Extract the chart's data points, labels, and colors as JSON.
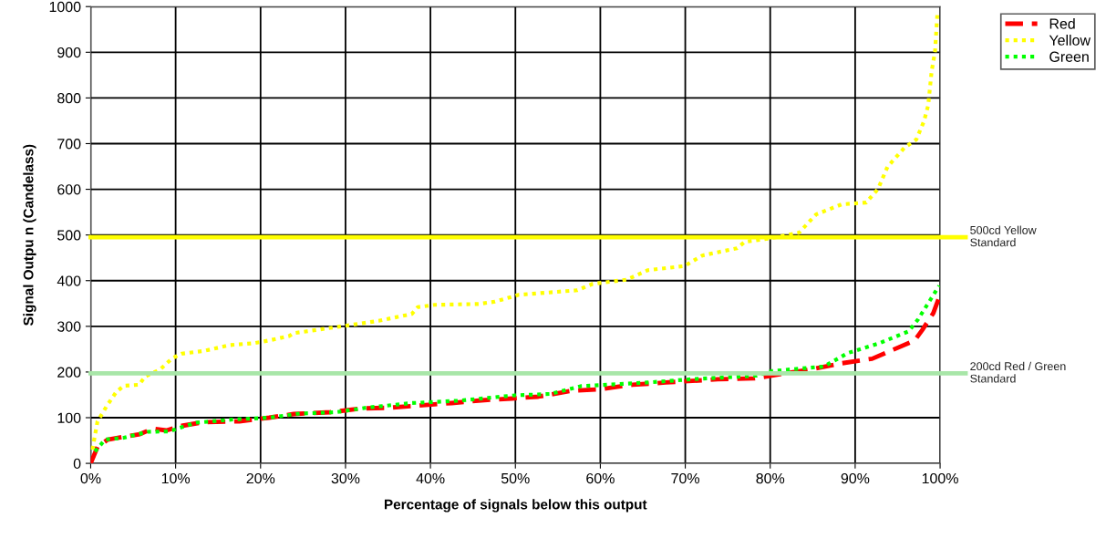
{
  "chart_data": {
    "type": "line",
    "xlabel": "Percentage of signals below this output",
    "ylabel": "Signal Outpu n (Candelass)",
    "xlim": [
      0,
      100
    ],
    "ylim": [
      0,
      1000
    ],
    "xticks": [
      {
        "value": 0,
        "label": "0%"
      },
      {
        "value": 10,
        "label": "10%"
      },
      {
        "value": 20,
        "label": "20%"
      },
      {
        "value": 30,
        "label": "30%"
      },
      {
        "value": 40,
        "label": "40%"
      },
      {
        "value": 50,
        "label": "50%"
      },
      {
        "value": 60,
        "label": "60%"
      },
      {
        "value": 70,
        "label": "70%"
      },
      {
        "value": 80,
        "label": "80%"
      },
      {
        "value": 90,
        "label": "90%"
      },
      {
        "value": 100,
        "label": "100%"
      }
    ],
    "yticks": [
      0,
      100,
      200,
      300,
      400,
      500,
      600,
      700,
      800,
      900,
      1000
    ],
    "grid": true,
    "legend": "right",
    "marker": "none",
    "series": [
      {
        "name": "Red",
        "color": "#ff0000",
        "line_style": "dashed",
        "x": [
          0,
          0.8,
          2.0,
          3.9,
          5.8,
          7.3,
          8.9,
          10.7,
          13.2,
          17.5,
          21.0,
          23.9,
          28.2,
          31.8,
          35.3,
          38.2,
          42.5,
          46.0,
          49.6,
          52.7,
          56.6,
          59.8,
          63.8,
          67.7,
          73.8,
          78.1,
          84.9,
          88.4,
          92.0,
          94.5,
          97.0,
          97.9,
          99.2,
          100
        ],
        "values": [
          0,
          36,
          52,
          58,
          64,
          76,
          72,
          82,
          90,
          92,
          100,
          108,
          112,
          120,
          122,
          126,
          132,
          138,
          142,
          146,
          159,
          162,
          172,
          177,
          184,
          186,
          206,
          219,
          229,
          249,
          269,
          292,
          329,
          369
        ]
      },
      {
        "name": "Yellow",
        "color": "#ffff00",
        "line_style": "dotted",
        "x": [
          0.2,
          0.8,
          1.4,
          1.9,
          3.0,
          3.9,
          5.7,
          6.4,
          8.2,
          9.6,
          10.7,
          13.3,
          16.4,
          19.2,
          21.0,
          23.4,
          23.9,
          26.9,
          29.9,
          33.9,
          37.8,
          38.5,
          40.5,
          45.7,
          47.6,
          50.4,
          57.3,
          59.1,
          63.1,
          65.6,
          69.9,
          72.0,
          76.1,
          77.0,
          79.8,
          83.4,
          85.4,
          88.4,
          91.3,
          92.7,
          93.8,
          95.8,
          97.2,
          98.1,
          98.6,
          99.0,
          99.4,
          99.7
        ],
        "values": [
          30,
          92,
          110,
          126,
          156,
          170,
          172,
          190,
          206,
          230,
          240,
          246,
          259,
          263,
          269,
          279,
          285,
          293,
          301,
          312,
          327,
          342,
          347,
          349,
          354,
          369,
          379,
          393,
          402,
          423,
          432,
          455,
          471,
          485,
          492,
          505,
          545,
          567,
          571,
          601,
          649,
          691,
          709,
          749,
          784,
          858,
          901,
          991
        ]
      },
      {
        "name": "Green",
        "color": "#00ff00",
        "line_style": "dotted",
        "x": [
          0.5,
          1.7,
          3.9,
          6.7,
          9.2,
          12.4,
          16.7,
          21.0,
          24.6,
          28.9,
          32.5,
          37.8,
          43.2,
          50.0,
          54.1,
          57.7,
          65.6,
          70.6,
          78.4,
          80.2,
          86.3,
          89.2,
          92.7,
          96.3,
          97.4,
          99.9
        ],
        "values": [
          26,
          52,
          56,
          69,
          70,
          89,
          96,
          100,
          109,
          112,
          122,
          132,
          137,
          149,
          152,
          169,
          177,
          184,
          192,
          202,
          212,
          242,
          262,
          289,
          315,
          389
        ]
      }
    ],
    "ref_lines": [
      {
        "axis": "y",
        "value": 495,
        "label": "500cd Yellow\nStandard",
        "color": "#ffff00"
      },
      {
        "axis": "y",
        "value": 197,
        "label": "200cd Red / Green\nStandard",
        "color": "#a8e6a8"
      }
    ]
  }
}
